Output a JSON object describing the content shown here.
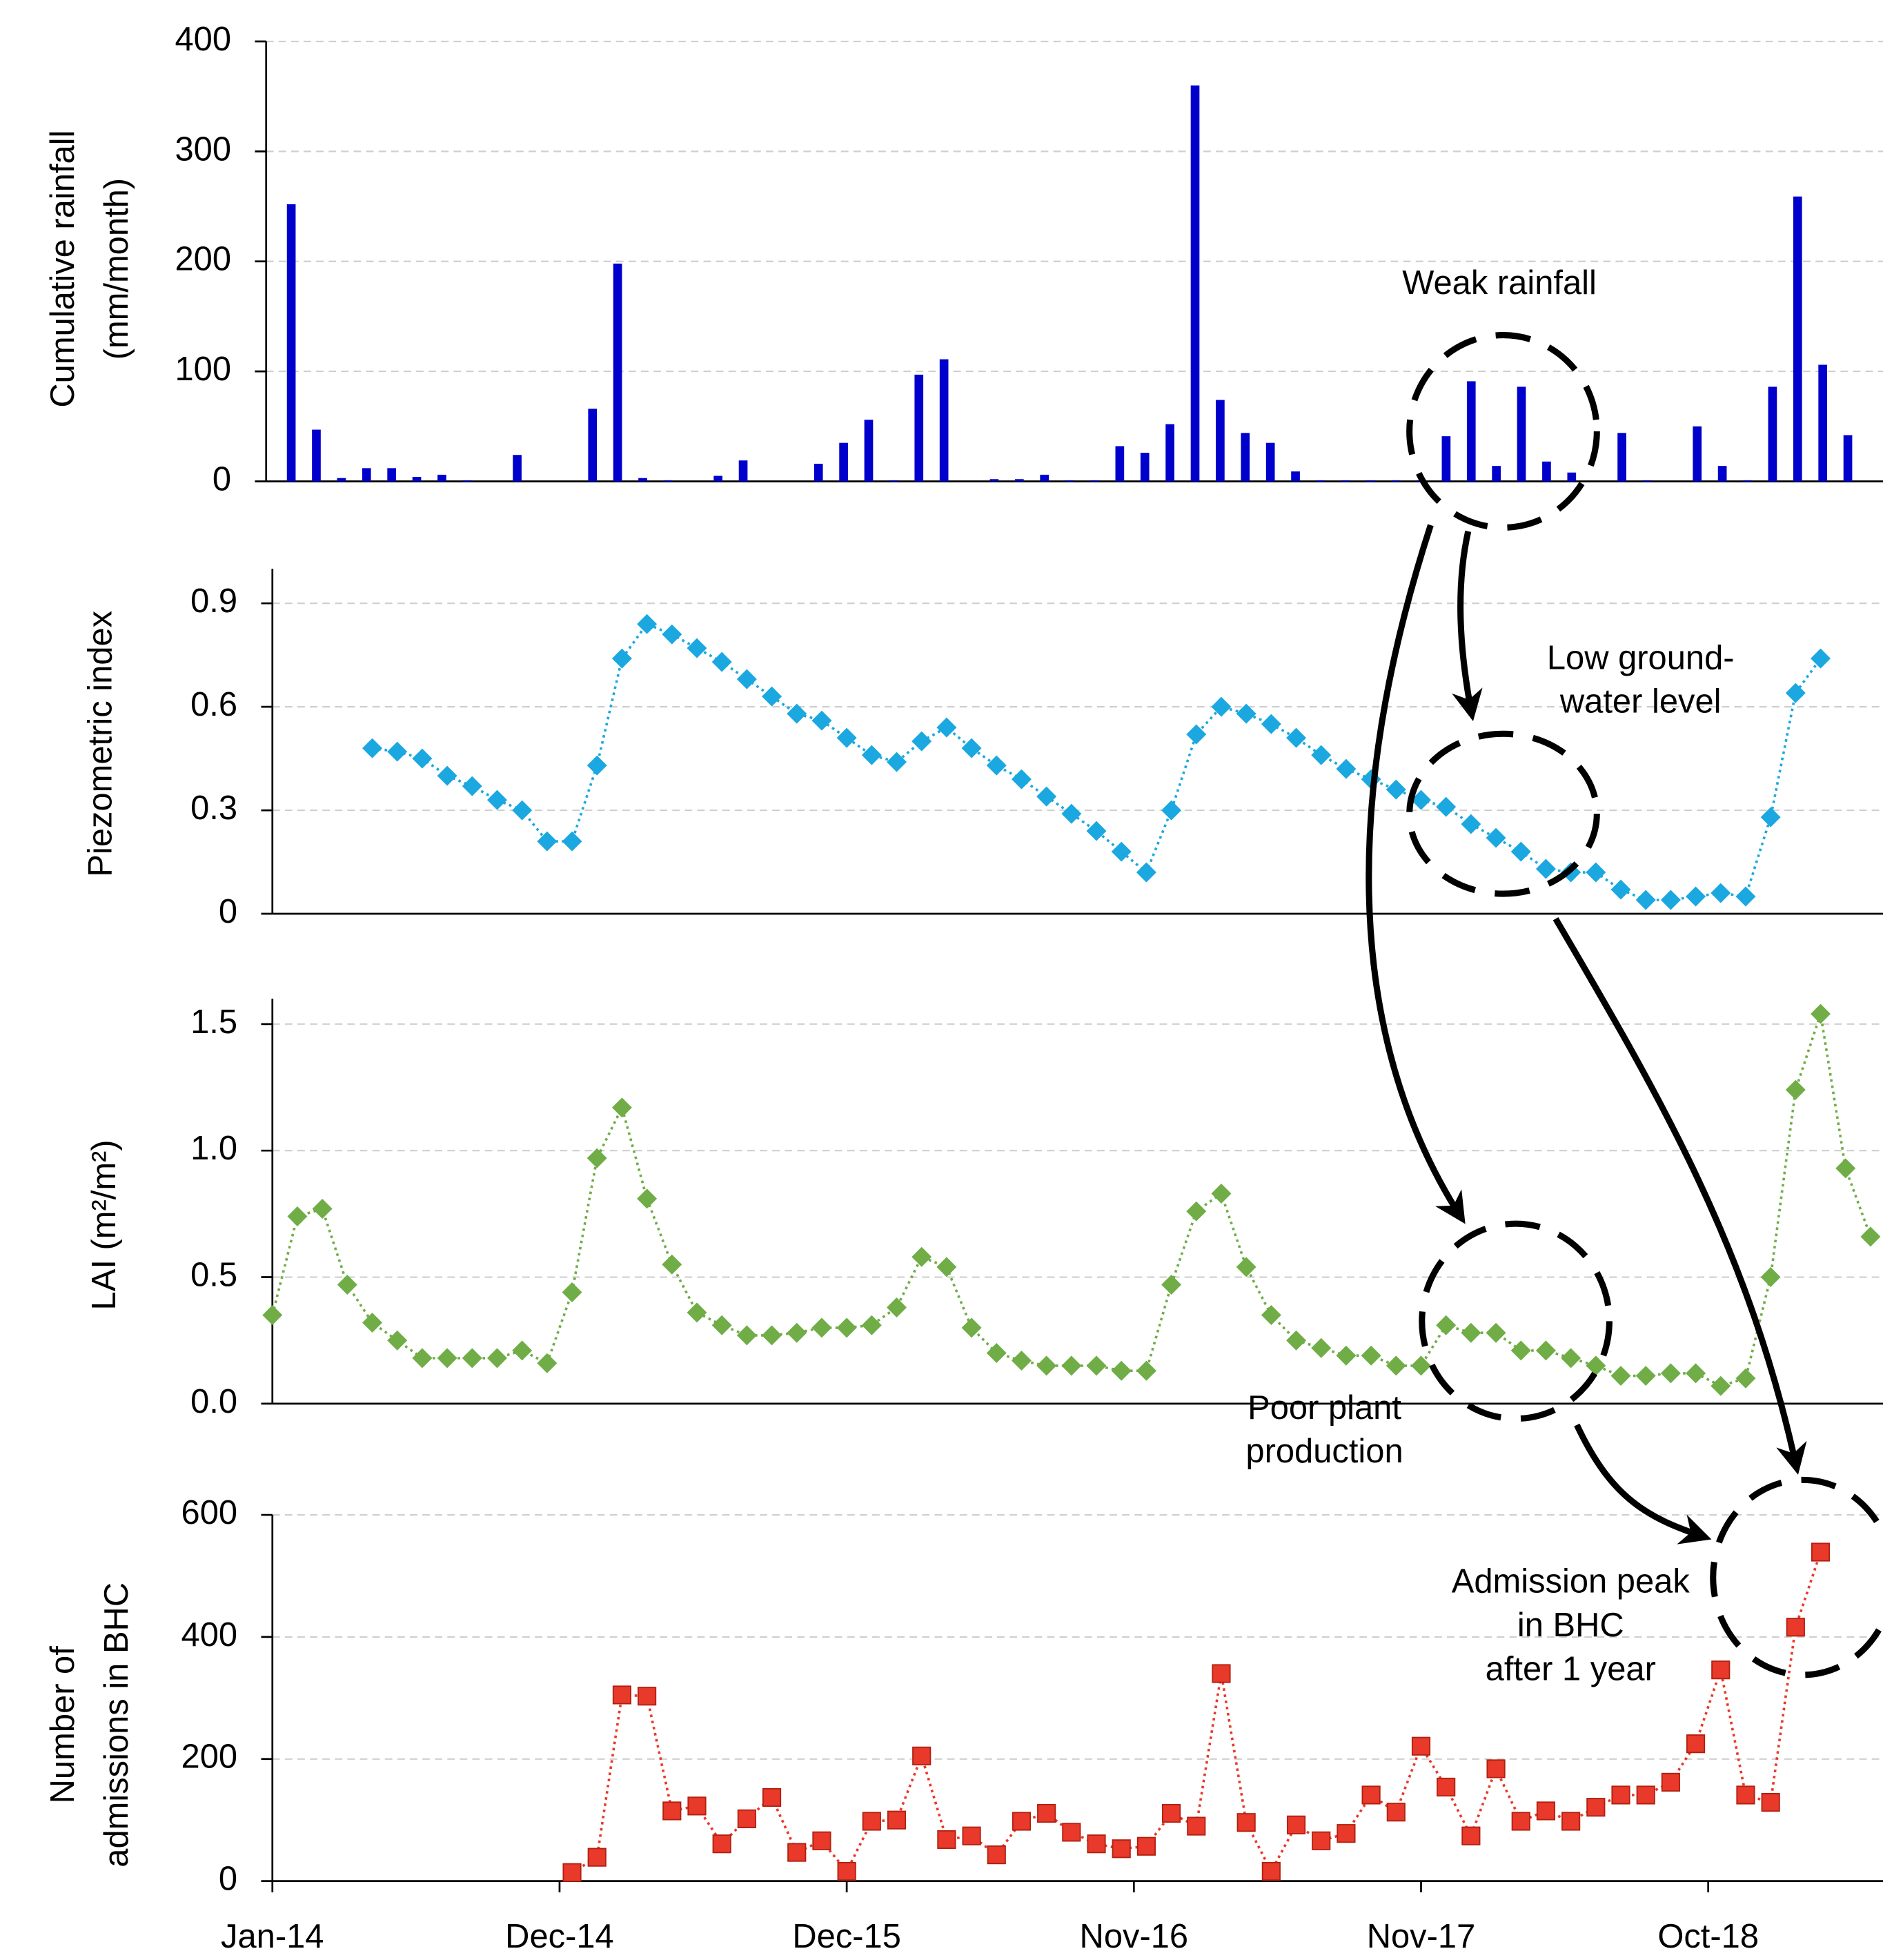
{
  "chart_data": [
    {
      "type": "bar",
      "ylabel": [
        "Cumulative rainfall",
        "(mm/month)"
      ],
      "color": "#0000cc",
      "grid": true,
      "x": [
        0,
        1,
        2,
        3,
        4,
        5,
        6,
        7,
        8,
        9,
        10,
        11,
        12,
        13,
        14,
        15,
        16,
        17,
        18,
        19,
        20,
        21,
        22,
        23,
        24,
        25,
        26,
        27,
        28,
        29,
        30,
        31,
        32,
        33,
        34,
        35,
        36,
        37,
        38,
        39,
        40,
        41,
        42,
        43,
        44,
        45,
        46,
        47,
        48,
        49,
        50,
        51,
        52,
        53,
        54,
        55,
        56,
        57,
        58,
        59,
        60,
        61,
        62
      ],
      "values": [
        252,
        47,
        3,
        12,
        12,
        4,
        6,
        1,
        0,
        24,
        0,
        0,
        66,
        198,
        3,
        1,
        0,
        5,
        19,
        0,
        0,
        16,
        35,
        56,
        1,
        97,
        111,
        0,
        2,
        2,
        6,
        1,
        1,
        32,
        26,
        52,
        360,
        74,
        44,
        35,
        9,
        1,
        1,
        1,
        1,
        1,
        41,
        91,
        14,
        86,
        18,
        8,
        0,
        44,
        1,
        0,
        50,
        14,
        1,
        86,
        259,
        106,
        42
      ],
      "xlim": [
        -1,
        63.4
      ],
      "ylim": [
        0,
        400
      ],
      "yticks": [
        0,
        100,
        200,
        300,
        400
      ],
      "annotations": [
        [
          "Weak rainfall"
        ]
      ]
    },
    {
      "type": "line",
      "ylabel": [
        "Piezometric index"
      ],
      "color": "#1ba8e0",
      "marker": "diamond",
      "grid": true,
      "x": [
        0,
        1,
        2,
        3,
        4,
        5,
        6,
        7,
        8,
        9,
        10,
        11,
        12,
        13,
        14,
        15,
        16,
        17,
        18,
        19,
        20,
        21,
        22,
        23,
        24,
        25,
        26,
        27,
        28,
        29,
        30,
        31,
        32,
        33,
        34,
        35,
        36,
        37,
        38,
        39,
        40,
        41,
        42,
        43,
        44,
        45,
        46,
        47,
        48,
        49,
        50,
        51,
        52,
        53,
        54,
        55,
        56,
        57,
        58,
        59,
        60,
        61,
        62
      ],
      "values": [
        null,
        null,
        null,
        null,
        0.48,
        0.47,
        0.45,
        0.4,
        0.37,
        0.33,
        0.3,
        0.21,
        0.21,
        0.43,
        0.74,
        0.84,
        0.81,
        0.77,
        0.73,
        0.68,
        0.63,
        0.58,
        0.56,
        0.51,
        0.46,
        0.44,
        0.5,
        0.54,
        0.48,
        0.43,
        0.39,
        0.34,
        0.29,
        0.24,
        0.18,
        0.12,
        0.3,
        0.52,
        0.6,
        0.58,
        0.55,
        0.51,
        0.46,
        0.42,
        0.39,
        0.36,
        0.33,
        0.31,
        0.26,
        0.22,
        0.18,
        0.13,
        0.12,
        0.12,
        0.07,
        0.04,
        0.04,
        0.05,
        0.06,
        0.05,
        0.28,
        0.64,
        0.74
      ],
      "xlim": [
        0,
        64.5
      ],
      "ylim": [
        0,
        1
      ],
      "yticks": [
        0,
        0.3,
        0.6,
        0.9
      ],
      "annotations": [
        [
          "Low ground-",
          "water level"
        ]
      ]
    },
    {
      "type": "line",
      "ylabel": [
        "LAI (m²/m²)"
      ],
      "color": "#70ad47",
      "marker": "diamond",
      "grid": true,
      "x": [
        0,
        1,
        2,
        3,
        4,
        5,
        6,
        7,
        8,
        9,
        10,
        11,
        12,
        13,
        14,
        15,
        16,
        17,
        18,
        19,
        20,
        21,
        22,
        23,
        24,
        25,
        26,
        27,
        28,
        29,
        30,
        31,
        32,
        33,
        34,
        35,
        36,
        37,
        38,
        39,
        40,
        41,
        42,
        43,
        44,
        45,
        46,
        47,
        48,
        49,
        50,
        51,
        52,
        53,
        54,
        55,
        56,
        57,
        58,
        59,
        60,
        61,
        62,
        63,
        64
      ],
      "values": [
        0.35,
        0.74,
        0.77,
        0.47,
        0.32,
        0.25,
        0.18,
        0.18,
        0.18,
        0.18,
        0.21,
        0.16,
        0.44,
        0.97,
        1.17,
        0.81,
        0.55,
        0.36,
        0.31,
        0.27,
        0.27,
        0.28,
        0.3,
        0.3,
        0.31,
        0.38,
        0.58,
        0.54,
        0.3,
        0.2,
        0.17,
        0.15,
        0.15,
        0.15,
        0.13,
        0.13,
        0.47,
        0.76,
        0.83,
        0.54,
        0.35,
        0.25,
        0.22,
        0.19,
        0.19,
        0.15,
        0.15,
        0.31,
        0.28,
        0.28,
        0.21,
        0.21,
        0.18,
        0.15,
        0.11,
        0.11,
        0.12,
        0.12,
        0.07,
        0.1,
        0.5,
        1.24,
        1.54,
        0.93,
        0.66
      ],
      "xlim": [
        0,
        64.5
      ],
      "ylim": [
        0,
        1.6
      ],
      "yticks": [
        {
          "value": 0,
          "label": "0.0"
        },
        0.5,
        {
          "value": 1,
          "label": "1.0"
        },
        1.5
      ],
      "annotations": [
        [
          "Poor  plant",
          "production"
        ]
      ]
    },
    {
      "type": "line",
      "ylabel": [
        "Number of",
        "admissions in BHC"
      ],
      "color": "#e8392a",
      "marker": "square",
      "grid": true,
      "x": [
        0,
        1,
        2,
        3,
        4,
        5,
        6,
        7,
        8,
        9,
        10,
        11,
        12,
        13,
        14,
        15,
        16,
        17,
        18,
        19,
        20,
        21,
        22,
        23,
        24,
        25,
        26,
        27,
        28,
        29,
        30,
        31,
        32,
        33,
        34,
        35,
        36,
        37,
        38,
        39,
        40,
        41,
        42,
        43,
        44,
        45,
        46,
        47,
        48,
        49,
        50,
        51,
        52,
        53,
        54,
        55,
        56,
        57,
        58,
        59,
        60,
        61,
        62
      ],
      "values": [
        null,
        null,
        null,
        null,
        null,
        null,
        null,
        null,
        null,
        null,
        null,
        null,
        14,
        39,
        305,
        303,
        115,
        123,
        61,
        102,
        137,
        47,
        66,
        16,
        98,
        100,
        205,
        68,
        74,
        43,
        98,
        111,
        80,
        61,
        53,
        57,
        111,
        90,
        340,
        96,
        16,
        92,
        66,
        78,
        141,
        113,
        221,
        154,
        74,
        184,
        98,
        115,
        98,
        121,
        141,
        141,
        162,
        225,
        346,
        141,
        129,
        416,
        539
      ],
      "xlim": [
        0,
        64.5
      ],
      "ylim": [
        0,
        600
      ],
      "yticks": [
        0,
        200,
        400,
        600
      ],
      "xticks": [
        {
          "value": 0,
          "label": "Jan-14"
        },
        {
          "value": 11.5,
          "label": "Dec-14"
        },
        {
          "value": 23,
          "label": "Dec-15"
        },
        {
          "value": 34.5,
          "label": "Nov-16"
        },
        {
          "value": 46,
          "label": "Nov-17"
        },
        {
          "value": 57.5,
          "label": "Oct-18"
        }
      ],
      "annotations": [
        [
          "Admission peak",
          "in BHC",
          "after 1 year"
        ]
      ]
    }
  ]
}
